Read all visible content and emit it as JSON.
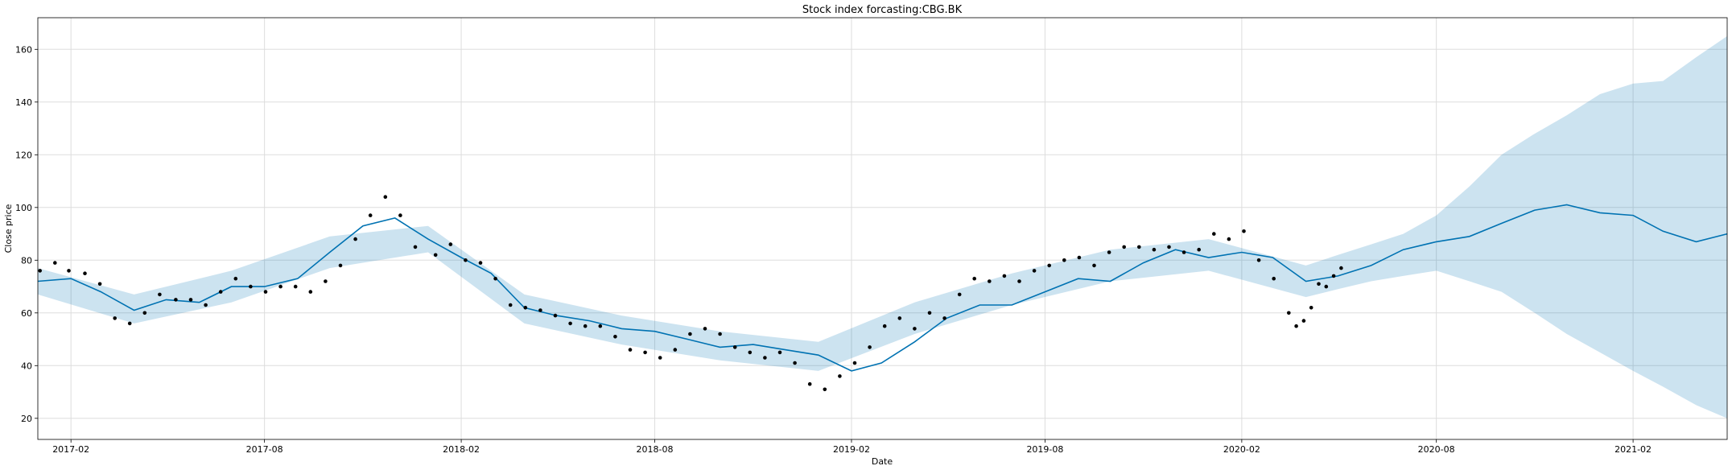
{
  "chart_data": {
    "type": "line",
    "title": "Stock index forcasting:CBG.BK",
    "xlabel": "Date",
    "ylabel": "Close price",
    "ylim": [
      12,
      172
    ],
    "xlim": [
      "2017-01-01",
      "2021-04-30"
    ],
    "grid": true,
    "legend": "none",
    "x_ticks": [
      "2017-02",
      "2017-08",
      "2018-02",
      "2018-08",
      "2019-02",
      "2019-08",
      "2020-02",
      "2020-08",
      "2021-02"
    ],
    "y_ticks": [
      20,
      40,
      60,
      80,
      100,
      120,
      140,
      160
    ],
    "series": [
      {
        "kind": "forecast",
        "color": "#0072B2",
        "x": [
          "2017-01-01",
          "2017-02-01",
          "2017-03-01",
          "2017-04-01",
          "2017-05-01",
          "2017-06-01",
          "2017-07-01",
          "2017-08-01",
          "2017-09-01",
          "2017-10-01",
          "2017-11-01",
          "2017-12-01",
          "2018-01-01",
          "2018-02-01",
          "2018-03-01",
          "2018-04-01",
          "2018-05-01",
          "2018-06-01",
          "2018-07-01",
          "2018-08-01",
          "2018-09-01",
          "2018-10-01",
          "2018-11-01",
          "2018-12-01",
          "2019-01-01",
          "2019-02-01",
          "2019-03-01",
          "2019-04-01",
          "2019-05-01",
          "2019-06-01",
          "2019-07-01",
          "2019-08-01",
          "2019-09-01",
          "2019-10-01",
          "2019-11-01",
          "2019-12-01",
          "2020-01-01",
          "2020-02-01",
          "2020-03-01",
          "2020-04-01",
          "2020-05-01",
          "2020-06-01",
          "2020-07-01",
          "2020-08-01",
          "2020-09-01",
          "2020-10-01",
          "2020-11-01",
          "2020-12-01",
          "2021-01-01",
          "2021-02-01",
          "2021-03-01",
          "2021-04-01",
          "2021-04-30"
        ],
        "values": [
          72,
          73,
          68,
          61,
          65,
          64,
          70,
          70,
          73,
          83,
          93,
          96,
          88,
          81,
          75,
          62,
          59,
          57,
          54,
          53,
          50,
          47,
          48,
          46,
          44,
          38,
          41,
          49,
          58,
          63,
          63,
          68,
          73,
          72,
          79,
          84,
          81,
          83,
          81,
          72,
          74,
          78,
          84,
          87,
          89,
          94,
          99,
          101,
          98,
          97,
          91,
          87,
          90
        ]
      },
      {
        "kind": "uncertainty_interval",
        "color": "#0072B2",
        "x": [
          "2017-01-01",
          "2017-04-01",
          "2017-07-01",
          "2017-10-01",
          "2018-01-01",
          "2018-04-01",
          "2018-07-01",
          "2018-10-01",
          "2019-01-01",
          "2019-04-01",
          "2019-07-01",
          "2019-10-01",
          "2020-01-01",
          "2020-04-01",
          "2020-05-01",
          "2020-06-01",
          "2020-07-01",
          "2020-08-01",
          "2020-09-01",
          "2020-10-01",
          "2020-11-01",
          "2020-12-01",
          "2021-01-01",
          "2021-02-01",
          "2021-03-01",
          "2021-04-01",
          "2021-04-30"
        ],
        "lower": [
          67,
          56,
          64,
          77,
          83,
          56,
          48,
          42,
          38,
          52,
          63,
          72,
          76,
          66,
          69,
          72,
          74,
          76,
          72,
          68,
          60,
          52,
          45,
          38,
          32,
          25,
          20
        ],
        "upper": [
          77,
          67,
          76,
          89,
          93,
          67,
          59,
          53,
          49,
          64,
          75,
          84,
          88,
          78,
          82,
          86,
          90,
          97,
          108,
          120,
          128,
          135,
          143,
          147,
          148,
          157,
          165
        ]
      },
      {
        "kind": "observed",
        "color": "#000000",
        "x": [
          "2017-01-03",
          "2017-01-17",
          "2017-01-30",
          "2017-02-14",
          "2017-02-28",
          "2017-03-14",
          "2017-03-28",
          "2017-04-11",
          "2017-04-25",
          "2017-05-10",
          "2017-05-24",
          "2017-06-07",
          "2017-06-21",
          "2017-07-05",
          "2017-07-19",
          "2017-08-02",
          "2017-08-16",
          "2017-08-30",
          "2017-09-13",
          "2017-09-27",
          "2017-10-11",
          "2017-10-25",
          "2017-11-08",
          "2017-11-22",
          "2017-12-06",
          "2017-12-20",
          "2018-01-08",
          "2018-01-22",
          "2018-02-05",
          "2018-02-19",
          "2018-03-05",
          "2018-03-19",
          "2018-04-02",
          "2018-04-16",
          "2018-04-30",
          "2018-05-14",
          "2018-05-28",
          "2018-06-11",
          "2018-06-25",
          "2018-07-09",
          "2018-07-23",
          "2018-08-06",
          "2018-08-20",
          "2018-09-03",
          "2018-09-17",
          "2018-10-01",
          "2018-10-15",
          "2018-10-29",
          "2018-11-12",
          "2018-11-26",
          "2018-12-10",
          "2018-12-24",
          "2019-01-07",
          "2019-01-21",
          "2019-02-04",
          "2019-02-18",
          "2019-03-04",
          "2019-03-18",
          "2019-04-01",
          "2019-04-15",
          "2019-04-29",
          "2019-05-13",
          "2019-05-27",
          "2019-06-10",
          "2019-06-24",
          "2019-07-08",
          "2019-07-22",
          "2019-08-05",
          "2019-08-19",
          "2019-09-02",
          "2019-09-16",
          "2019-09-30",
          "2019-10-14",
          "2019-10-28",
          "2019-11-11",
          "2019-11-25",
          "2019-12-09",
          "2019-12-23",
          "2020-01-06",
          "2020-01-20",
          "2020-02-03",
          "2020-02-17",
          "2020-03-02",
          "2020-03-16",
          "2020-03-23",
          "2020-03-30",
          "2020-04-06",
          "2020-04-13",
          "2020-04-20",
          "2020-04-27",
          "2020-05-04"
        ],
        "values": [
          76,
          79,
          76,
          75,
          71,
          58,
          56,
          60,
          67,
          65,
          65,
          63,
          68,
          73,
          70,
          68,
          70,
          70,
          68,
          72,
          78,
          88,
          97,
          104,
          97,
          85,
          82,
          86,
          80,
          79,
          73,
          63,
          62,
          61,
          59,
          56,
          55,
          55,
          51,
          46,
          45,
          43,
          46,
          52,
          54,
          52,
          47,
          45,
          43,
          45,
          41,
          33,
          31,
          36,
          41,
          47,
          55,
          58,
          54,
          60,
          58,
          67,
          73,
          72,
          74,
          72,
          76,
          78,
          80,
          81,
          78,
          83,
          85,
          85,
          84,
          85,
          83,
          84,
          90,
          88,
          91,
          80,
          73,
          60,
          55,
          57,
          62,
          71,
          70,
          74,
          77
        ]
      }
    ]
  }
}
